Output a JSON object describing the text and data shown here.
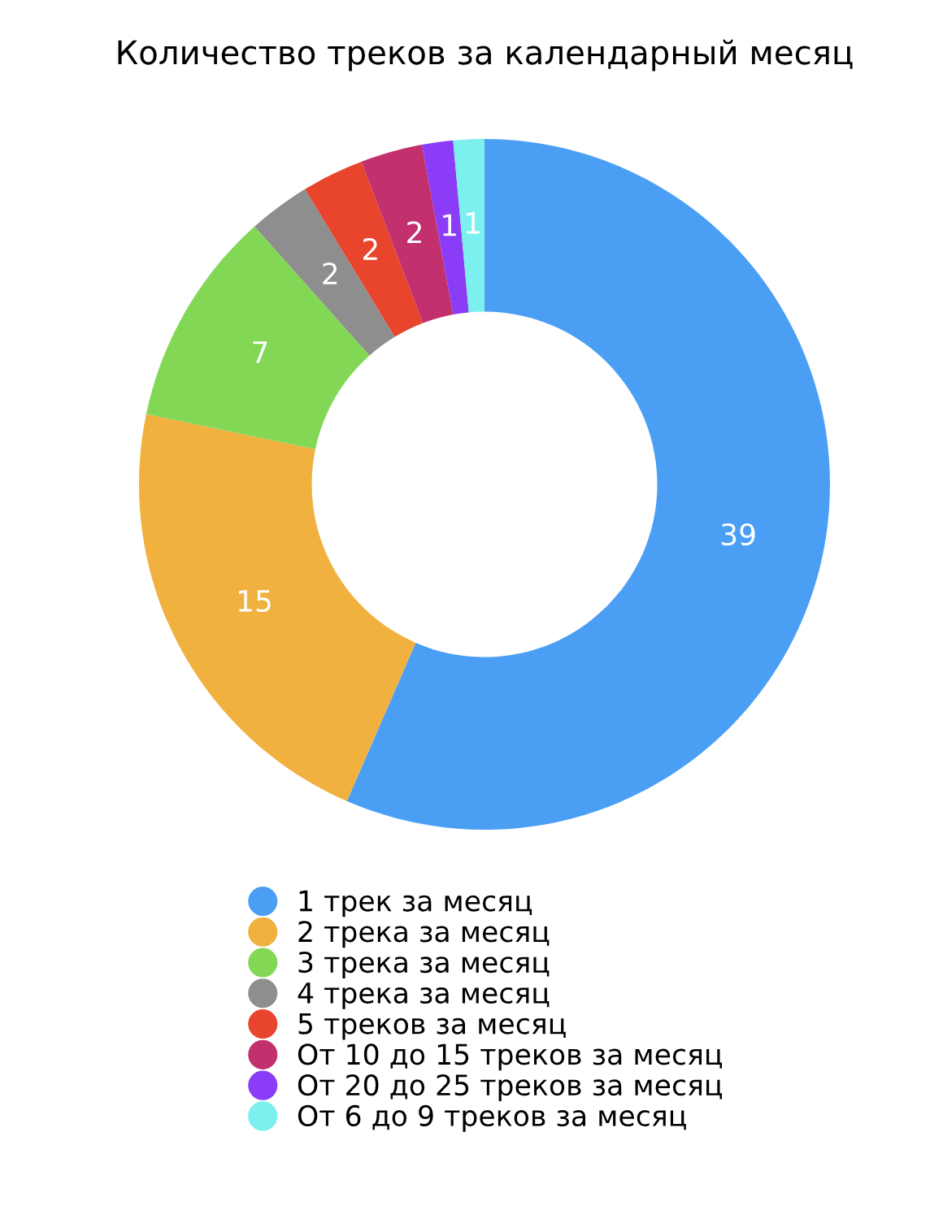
{
  "chart_data": {
    "type": "donut",
    "title": "Количество треков за календарный месяц",
    "categories": [
      "1 трек за месяц",
      "2 трека за месяц",
      "3 трека за месяц",
      "4 трека за месяц",
      "5 треков за месяц",
      "От 10 до 15 треков за месяц",
      "От 20 до 25 треков за месяц",
      "От 6 до 9 треков за месяц"
    ],
    "values": [
      39,
      15,
      7,
      2,
      2,
      2,
      1,
      1
    ],
    "colors": [
      "#4a9ff5",
      "#f1b13f",
      "#82d855",
      "#8e8e8e",
      "#e9442c",
      "#c2306e",
      "#8a3cf6",
      "#7bf0ef"
    ],
    "data_labels": true,
    "legend": "bottom"
  }
}
